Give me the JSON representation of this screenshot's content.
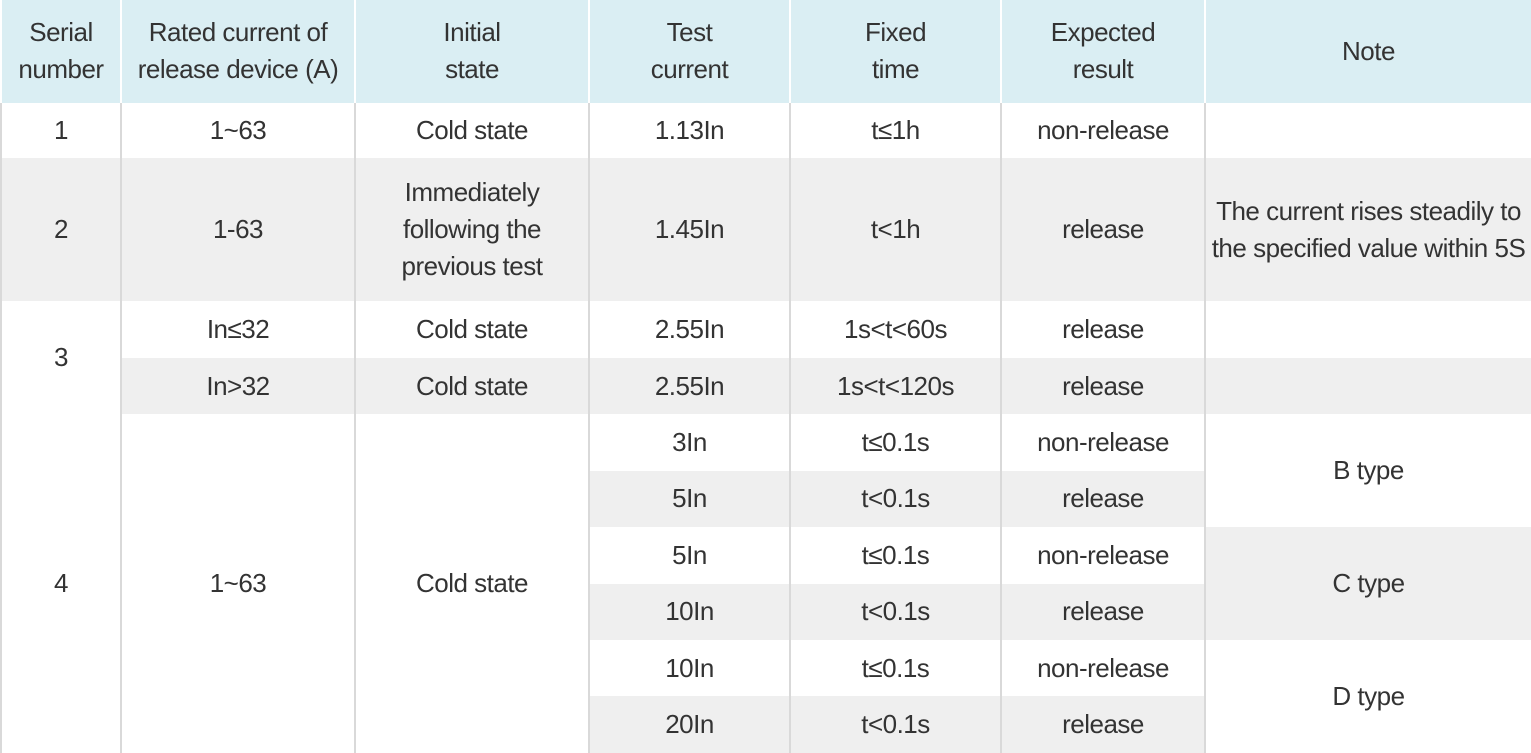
{
  "table": {
    "header": [
      "Serial number",
      "Rated current of release device (A)",
      "Initial state",
      "Test current",
      "Fixed time",
      "Expected result",
      "Note"
    ],
    "rows": [
      [
        "1",
        "1~63",
        "Cold state",
        "1.13In",
        "t≤1h",
        "non-release"
      ],
      [
        "2",
        "1-63",
        "Immediately following the previous test",
        "1.45In",
        "t<1h",
        "release",
        "The current rises steadily to the specified value within 5S"
      ],
      [
        "3",
        "In≤32",
        "Cold state",
        "2.55In",
        "1s<t<60s",
        "release"
      ],
      [
        "In>32",
        "Cold state",
        "2.55In",
        "1s<t<120s",
        "release"
      ],
      [
        "4",
        "1~63",
        "Cold state",
        "3In",
        "t≤0.1s",
        "non-release",
        "B type"
      ],
      [
        "5In",
        "t<0.1s",
        "release"
      ],
      [
        "5In",
        "t≤0.1s",
        "non-release",
        "C type"
      ],
      [
        "10In",
        "t<0.1s",
        "release"
      ],
      [
        "10In",
        "t≤0.1s",
        "non-release",
        "D type"
      ],
      [
        "20In",
        "t<0.1s",
        "release"
      ]
    ]
  }
}
